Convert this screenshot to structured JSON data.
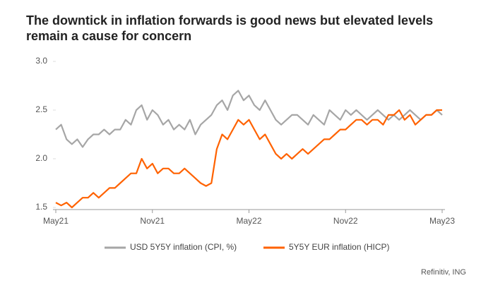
{
  "chart_data": {
    "type": "line",
    "title": "The downtick in inflation forwards is good news but elevated levels remain a cause for concern",
    "source": "Refinitiv, ING",
    "categories": [
      "May21",
      null,
      null,
      null,
      null,
      null,
      null,
      null,
      null,
      null,
      null,
      null,
      null,
      null,
      null,
      null,
      null,
      null,
      "Nov21",
      null,
      null,
      null,
      null,
      null,
      null,
      null,
      null,
      null,
      null,
      null,
      null,
      null,
      null,
      null,
      null,
      null,
      "May22",
      null,
      null,
      null,
      null,
      null,
      null,
      null,
      null,
      null,
      null,
      null,
      null,
      null,
      null,
      null,
      null,
      null,
      "Nov22",
      null,
      null,
      null,
      null,
      null,
      null,
      null,
      null,
      null,
      null,
      null,
      null,
      null,
      null,
      null,
      null,
      null,
      "May23"
    ],
    "series": [
      {
        "name": "USD 5Y5Y inflation (CPI, %)",
        "color": "#a6a6a6",
        "values": [
          2.3,
          2.35,
          2.2,
          2.15,
          2.2,
          2.12,
          2.2,
          2.25,
          2.25,
          2.3,
          2.25,
          2.3,
          2.3,
          2.4,
          2.35,
          2.5,
          2.55,
          2.4,
          2.5,
          2.45,
          2.35,
          2.4,
          2.3,
          2.35,
          2.3,
          2.4,
          2.25,
          2.35,
          2.4,
          2.45,
          2.55,
          2.6,
          2.5,
          2.65,
          2.7,
          2.6,
          2.65,
          2.55,
          2.5,
          2.6,
          2.5,
          2.4,
          2.35,
          2.4,
          2.45,
          2.45,
          2.4,
          2.35,
          2.45,
          2.4,
          2.35,
          2.5,
          2.45,
          2.4,
          2.5,
          2.45,
          2.5,
          2.45,
          2.4,
          2.45,
          2.5,
          2.45,
          2.4,
          2.45,
          2.4,
          2.45,
          2.5,
          2.45,
          2.4,
          2.45,
          2.45,
          2.5,
          2.45
        ]
      },
      {
        "name": "5Y5Y EUR inflation (HICP)",
        "color": "#ff6200",
        "values": [
          1.55,
          1.52,
          1.55,
          1.5,
          1.55,
          1.6,
          1.6,
          1.65,
          1.6,
          1.65,
          1.7,
          1.7,
          1.75,
          1.8,
          1.85,
          1.85,
          2.0,
          1.9,
          1.95,
          1.85,
          1.9,
          1.9,
          1.85,
          1.85,
          1.9,
          1.85,
          1.8,
          1.75,
          1.72,
          1.75,
          2.1,
          2.25,
          2.2,
          2.3,
          2.4,
          2.35,
          2.4,
          2.3,
          2.2,
          2.25,
          2.15,
          2.05,
          2.0,
          2.05,
          2.0,
          2.05,
          2.1,
          2.05,
          2.1,
          2.15,
          2.2,
          2.2,
          2.25,
          2.3,
          2.3,
          2.35,
          2.4,
          2.4,
          2.35,
          2.4,
          2.4,
          2.35,
          2.45,
          2.45,
          2.5,
          2.4,
          2.45,
          2.35,
          2.4,
          2.45,
          2.45,
          2.5,
          2.5
        ]
      }
    ],
    "ylim": [
      1.5,
      3.0
    ],
    "yticks": [
      {
        "value": 1.5,
        "label": "1.5"
      },
      {
        "value": 2.0,
        "label": "2.0"
      },
      2.5,
      {
        "value": 3.0,
        "label": "3.0"
      }
    ],
    "legend": "bottom"
  }
}
